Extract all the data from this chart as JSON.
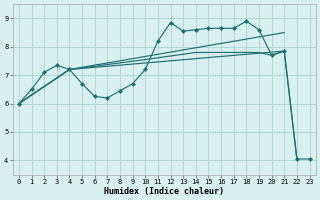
{
  "xlabel": "Humidex (Indice chaleur)",
  "xlim": [
    -0.5,
    23.5
  ],
  "ylim": [
    3.5,
    9.5
  ],
  "xticks": [
    0,
    1,
    2,
    3,
    4,
    5,
    6,
    7,
    8,
    9,
    10,
    11,
    12,
    13,
    14,
    15,
    16,
    17,
    18,
    19,
    20,
    21,
    22,
    23
  ],
  "yticks": [
    4,
    5,
    6,
    7,
    8,
    9
  ],
  "bg_color": "#d8f0ee",
  "grid_color": "#b0d8d4",
  "line_color": "#1e7070",
  "line1_x": [
    0,
    1,
    2,
    3,
    4,
    5,
    6,
    7,
    8,
    9,
    10,
    11,
    12,
    13,
    14,
    15,
    16,
    17,
    18,
    19,
    20,
    21,
    22,
    23
  ],
  "line1_y": [
    6.0,
    6.5,
    7.1,
    7.35,
    7.2,
    6.7,
    6.25,
    6.2,
    6.45,
    6.7,
    7.2,
    8.2,
    8.85,
    8.55,
    8.6,
    8.65,
    8.65,
    8.65,
    8.9,
    8.6,
    7.7,
    7.85,
    4.05,
    4.05
  ],
  "line2_x": [
    0,
    4,
    21,
    22
  ],
  "line2_y": [
    6.0,
    7.2,
    7.85,
    4.05
  ],
  "line3_x": [
    0,
    4,
    10,
    14,
    19,
    20,
    21
  ],
  "line3_y": [
    6.0,
    7.2,
    7.55,
    7.8,
    7.8,
    7.7,
    7.85
  ],
  "line4_x": [
    0,
    4,
    21
  ],
  "line4_y": [
    6.0,
    7.2,
    8.5
  ]
}
